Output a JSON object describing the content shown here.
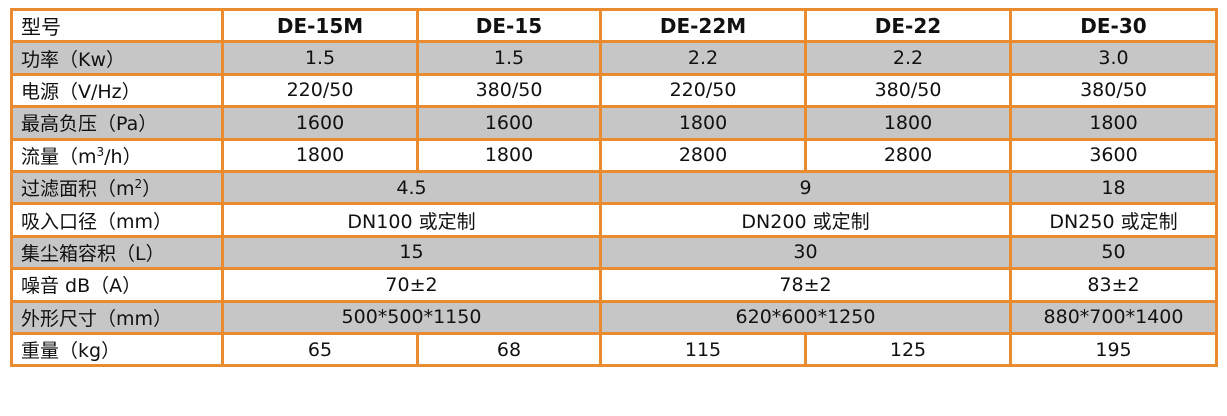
{
  "header": {
    "label": "型号",
    "models": [
      "DE-15M",
      "DE-15",
      "DE-22M",
      "DE-22",
      "DE-30"
    ]
  },
  "rows": [
    {
      "label": "功率（Kw）",
      "values": [
        "1.5",
        "1.5",
        "2.2",
        "2.2",
        "3.0"
      ]
    },
    {
      "label": "电源（V/Hz）",
      "values": [
        "220/50",
        "380/50",
        "220/50",
        "380/50",
        "380/50"
      ]
    },
    {
      "label": "最高负压（Pa）",
      "values": [
        "1600",
        "1600",
        "1800",
        "1800",
        "1800"
      ]
    },
    {
      "label_pre": "流量（m",
      "label_sup": "3",
      "label_post": "/h）",
      "values": [
        "1800",
        "1800",
        "2800",
        "2800",
        "3600"
      ]
    },
    {
      "label_pre": "过滤面积（m",
      "label_sup": "2",
      "label_post": "）",
      "values": [
        "4.5",
        "9",
        "18"
      ]
    },
    {
      "label": "吸入口径（mm）",
      "values": [
        "DN100 或定制",
        "DN200 或定制",
        "DN250 或定制"
      ]
    },
    {
      "label": "集尘箱容积（L）",
      "values": [
        "15",
        "30",
        "50"
      ]
    },
    {
      "label": "噪音 dB（A）",
      "values": [
        "70±2",
        "78±2",
        "83±2"
      ]
    },
    {
      "label": "外形尺寸（mm）",
      "values": [
        "500*500*1150",
        "620*600*1250",
        "880*700*1400"
      ]
    },
    {
      "label": "重量（kg）",
      "values": [
        "65",
        "68",
        "115",
        "125",
        "195"
      ]
    }
  ],
  "colors": {
    "border": "#e98b2e",
    "stripe": "#c6c6c6"
  }
}
